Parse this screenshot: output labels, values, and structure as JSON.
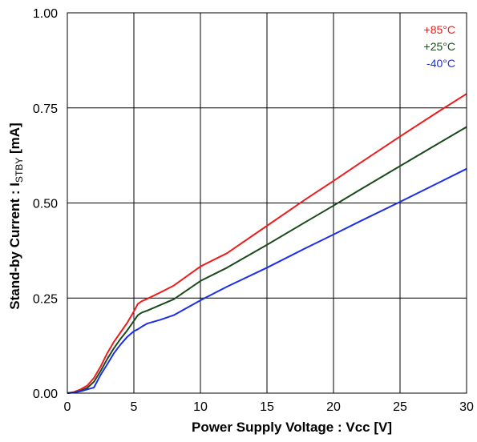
{
  "chart_data": {
    "type": "line",
    "xlabel": "Power Supply Voltage : Vcc [V]",
    "ylabel_main": "Stand-by Current : I",
    "ylabel_sub": "STBY",
    "ylabel_unit": " [mA]",
    "xlim": [
      0,
      30
    ],
    "ylim": [
      0,
      1.0
    ],
    "x_ticks": [
      0,
      5,
      10,
      15,
      20,
      25,
      30
    ],
    "x_tick_labels": [
      "0",
      "5",
      "10",
      "15",
      "20",
      "25",
      "30"
    ],
    "y_ticks": [
      0,
      0.25,
      0.5,
      0.75,
      1.0
    ],
    "y_tick_labels": [
      "0.00",
      "0.25",
      "0.50",
      "0.75",
      "1.00"
    ],
    "grid": true,
    "legend_position": "top-right",
    "series": [
      {
        "name": "+85°C",
        "color": "#ee1c1c",
        "x": [
          0,
          0.5,
          1.0,
          1.5,
          2.0,
          2.5,
          3.0,
          3.5,
          4.0,
          4.5,
          5.0,
          5.3,
          5.6,
          6.0,
          7,
          8,
          10,
          12,
          15,
          18,
          20,
          22,
          25,
          28,
          30
        ],
        "y": [
          0.0,
          0.003,
          0.01,
          0.02,
          0.04,
          0.07,
          0.105,
          0.135,
          0.16,
          0.185,
          0.215,
          0.235,
          0.242,
          0.248,
          0.265,
          0.283,
          0.333,
          0.368,
          0.44,
          0.512,
          0.558,
          0.605,
          0.675,
          0.743,
          0.787
        ]
      },
      {
        "name": "+25°C",
        "color": "#1a4a1a",
        "x": [
          0,
          0.5,
          1.0,
          1.5,
          2.0,
          2.5,
          3.0,
          3.5,
          4.0,
          4.5,
          5.0,
          5.3,
          5.6,
          6.0,
          7,
          8,
          10,
          12,
          15,
          18,
          20,
          22,
          25,
          28,
          30
        ],
        "y": [
          0.0,
          0.002,
          0.006,
          0.014,
          0.03,
          0.058,
          0.09,
          0.118,
          0.143,
          0.165,
          0.19,
          0.205,
          0.212,
          0.217,
          0.232,
          0.247,
          0.295,
          0.33,
          0.39,
          0.452,
          0.493,
          0.535,
          0.597,
          0.659,
          0.7
        ]
      },
      {
        "name": "-40°C",
        "color": "#1c2fe6",
        "x": [
          0,
          0.5,
          1.0,
          1.5,
          2.0,
          2.5,
          3.0,
          3.5,
          4.0,
          4.5,
          5.0,
          5.3,
          5.6,
          6.0,
          7,
          8,
          10,
          12,
          15,
          18,
          20,
          22,
          25,
          28,
          30
        ],
        "y": [
          0.0,
          0.002,
          0.005,
          0.01,
          0.015,
          0.048,
          0.076,
          0.105,
          0.128,
          0.148,
          0.163,
          0.168,
          0.175,
          0.183,
          0.193,
          0.205,
          0.244,
          0.28,
          0.33,
          0.383,
          0.417,
          0.452,
          0.503,
          0.555,
          0.59
        ]
      }
    ]
  }
}
